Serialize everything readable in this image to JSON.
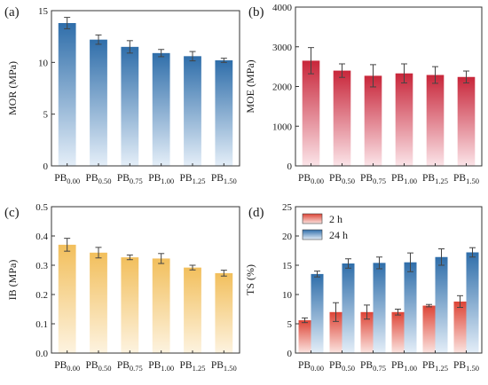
{
  "palette": {
    "mor_dark": "#2f6eaa",
    "mor_light": "#e4eef8",
    "moe_dark": "#c8263a",
    "moe_light": "#fbe4e8",
    "ib_dark": "#f2bf5c",
    "ib_light": "#fdf3e0",
    "ts2_dark": "#dd4436",
    "ts2_light": "#fbe4e0",
    "ts24_dark": "#2f6eaa",
    "ts24_light": "#e4eef8",
    "axis": "#333333",
    "error": "#444444"
  },
  "chart_data": [
    {
      "panel": "(a)",
      "type": "bar",
      "ylabel": "MOR (MPa)",
      "categories": [
        [
          "PB",
          "0.00"
        ],
        [
          "PB",
          "0.50"
        ],
        [
          "PB",
          "0.75"
        ],
        [
          "PB",
          "1.00"
        ],
        [
          "PB",
          "1.25"
        ],
        [
          "PB",
          "1.50"
        ]
      ],
      "ylim": [
        0,
        15
      ],
      "yticks": [
        0,
        5,
        10,
        15
      ],
      "series": [
        {
          "name": "",
          "color": "mor",
          "values": [
            13.8,
            12.2,
            11.5,
            10.9,
            10.6,
            10.2
          ],
          "errors": [
            0.55,
            0.45,
            0.6,
            0.35,
            0.45,
            0.2
          ]
        }
      ],
      "legend": null
    },
    {
      "panel": "(b)",
      "type": "bar",
      "ylabel": "MOE (MPa)",
      "categories": [
        [
          "PB",
          "0.00"
        ],
        [
          "PB",
          "0.50"
        ],
        [
          "PB",
          "0.75"
        ],
        [
          "PB",
          "1.00"
        ],
        [
          "PB",
          "1.25"
        ],
        [
          "PB",
          "1.50"
        ]
      ],
      "ylim": [
        0,
        4000
      ],
      "yticks": [
        0,
        1000,
        2000,
        3000,
        4000
      ],
      "series": [
        {
          "name": "",
          "color": "moe",
          "values": [
            2650,
            2400,
            2270,
            2330,
            2290,
            2240
          ],
          "errors": [
            330,
            170,
            280,
            240,
            210,
            150
          ]
        }
      ],
      "legend": null
    },
    {
      "panel": "(c)",
      "type": "bar",
      "ylabel": "IB (MPa)",
      "categories": [
        [
          "PB",
          "0.00"
        ],
        [
          "PB",
          "0.50"
        ],
        [
          "PB",
          "0.75"
        ],
        [
          "PB",
          "1.00"
        ],
        [
          "PB",
          "1.25"
        ],
        [
          "PB",
          "1.50"
        ]
      ],
      "ylim": [
        0,
        0.5
      ],
      "yticks": [
        0.0,
        0.1,
        0.2,
        0.3,
        0.4,
        0.5
      ],
      "ytick_decimals": 1,
      "series": [
        {
          "name": "",
          "color": "ib",
          "values": [
            0.37,
            0.343,
            0.327,
            0.323,
            0.292,
            0.273
          ],
          "errors": [
            0.022,
            0.018,
            0.008,
            0.017,
            0.008,
            0.01
          ]
        }
      ],
      "legend": null
    },
    {
      "panel": "(d)",
      "type": "bar",
      "ylabel": "TS (%)",
      "categories": [
        [
          "PB",
          "0.00"
        ],
        [
          "PB",
          "0.50"
        ],
        [
          "PB",
          "0.75"
        ],
        [
          "PB",
          "1.00"
        ],
        [
          "PB",
          "1.25"
        ],
        [
          "PB",
          "1.50"
        ]
      ],
      "ylim": [
        0,
        25
      ],
      "yticks": [
        0,
        5,
        10,
        15,
        20,
        25
      ],
      "series": [
        {
          "name": "2 h",
          "color": "ts2",
          "values": [
            5.6,
            7.0,
            7.0,
            7.0,
            8.1,
            8.8
          ],
          "errors": [
            0.4,
            1.6,
            1.2,
            0.5,
            0.2,
            1.0
          ]
        },
        {
          "name": "24 h",
          "color": "ts24",
          "values": [
            13.5,
            15.3,
            15.4,
            15.5,
            16.4,
            17.2
          ],
          "errors": [
            0.5,
            0.8,
            1.0,
            1.6,
            1.4,
            0.8
          ]
        }
      ],
      "legend": "top-left"
    }
  ]
}
